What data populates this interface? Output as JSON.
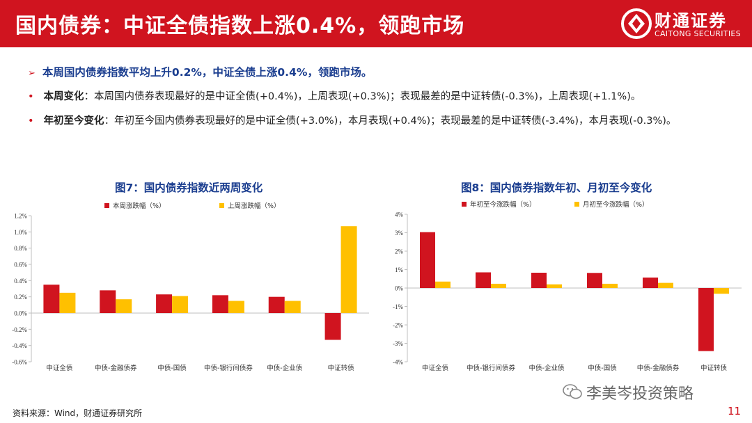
{
  "header": {
    "title": "国内债券：中证全债指数上涨0.4%，领跑市场",
    "logo_cn": "财通证券",
    "logo_en": "CAITONG SECURITIES"
  },
  "headline": "本周国内债券指数平均上升0.2%，中证全债上涨0.4%，领跑市场。",
  "bullets": [
    {
      "label": "本周变化",
      "text": "：本周国内债券表现最好的是中证全债(+0.4%)，上周表现(+0.3%)；表现最差的是中证转债(-0.3%)，上周表现(+1.1%)。"
    },
    {
      "label": "年初至今变化",
      "text": "：年初至今国内债券表现最好的是中证全债(+3.0%)，本月表现(+0.4%)；表现最差的是中证转债(-3.4%)，本月表现(-0.3%)。"
    }
  ],
  "colors": {
    "red": "#d0141f",
    "yellow": "#ffc000",
    "navy": "#1a3d8f"
  },
  "chart_data": [
    {
      "type": "bar",
      "title": "图7：国内债券指数近两周变化",
      "categories": [
        "中证全债",
        "中债-金融债券",
        "中债-国债",
        "中债-银行间债券",
        "中债-企业债",
        "中证转债"
      ],
      "series": [
        {
          "name": "本周涨跌幅（%）",
          "values": [
            0.35,
            0.28,
            0.23,
            0.22,
            0.2,
            -0.33
          ]
        },
        {
          "name": "上周涨跌幅（%）",
          "values": [
            0.25,
            0.17,
            0.21,
            0.15,
            0.15,
            1.07
          ]
        }
      ],
      "ylim": [
        -0.6,
        1.2
      ],
      "yticks": [
        "-0.6%",
        "-0.4%",
        "-0.2%",
        "0.0%",
        "0.2%",
        "0.4%",
        "0.6%",
        "0.8%",
        "1.0%",
        "1.2%"
      ],
      "grid": false,
      "legend": "top"
    },
    {
      "type": "bar",
      "title": "图8：国内债券指数年初、月初至今变化",
      "categories": [
        "中证全债",
        "中债-银行间债券",
        "中债-企业债",
        "中债-国债",
        "中债-金融债券",
        "中证转债"
      ],
      "series": [
        {
          "name": "年初至今涨跌幅（%）",
          "values": [
            3.03,
            0.85,
            0.83,
            0.82,
            0.57,
            -3.42
          ]
        },
        {
          "name": "月初至今涨跌幅（%）",
          "values": [
            0.35,
            0.23,
            0.2,
            0.23,
            0.28,
            -0.31
          ]
        }
      ],
      "ylim": [
        -4,
        4
      ],
      "yticks": [
        "-4%",
        "-3%",
        "-2%",
        "-1%",
        "0%",
        "1%",
        "2%",
        "3%",
        "4%"
      ],
      "grid": false,
      "legend": "top"
    }
  ],
  "footer": {
    "source": "资料来源：Wind，财通证券研究所",
    "watermark": "李美岑投资策略",
    "page": "11"
  }
}
